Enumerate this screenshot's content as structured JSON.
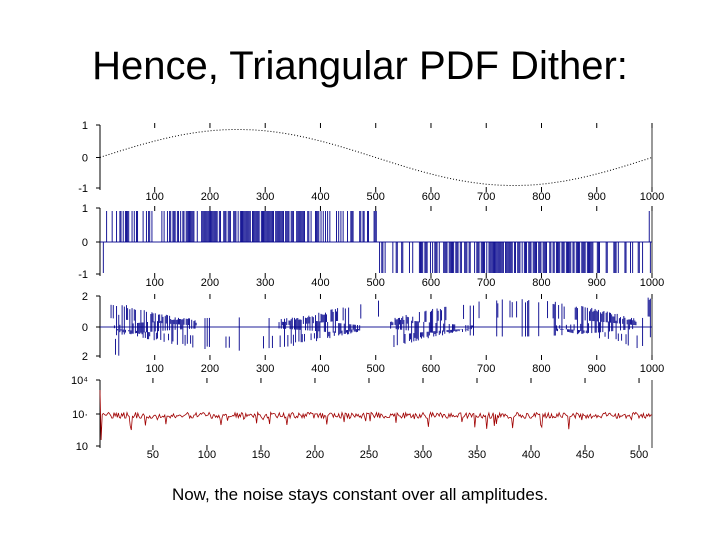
{
  "slide": {
    "title": "Hence, Triangular PDF Dither:",
    "caption": "Now, the noise stays constant over all amplitudes."
  },
  "colors": {
    "signal": "#000000",
    "dither": "#00008b",
    "spectrum": "#a00000",
    "axis": "#000000"
  },
  "chart_data": [
    {
      "type": "line",
      "description_key": "panel1",
      "x_range": [
        1,
        1000
      ],
      "ylim": [
        -1,
        1
      ],
      "y_ticks": [
        "1",
        "0",
        "-1"
      ],
      "x_ticks": [
        "100",
        "200",
        "300",
        "400",
        "500",
        "600",
        "700",
        "800",
        "900",
        "1000"
      ],
      "series": [
        {
          "style": "dotted",
          "function": "sine",
          "amplitude": 0.95,
          "period": 1000
        }
      ]
    },
    {
      "type": "line",
      "description_key": "panel2",
      "x_range": [
        1,
        1000
      ],
      "ylim": [
        -1,
        1
      ],
      "y_ticks": [
        "1",
        "0",
        "-1"
      ],
      "x_ticks": [
        "100",
        "200",
        "300",
        "400",
        "500",
        "600",
        "700",
        "800",
        "900",
        "1000"
      ],
      "series": [
        {
          "style": "dense",
          "function": "quantized-dithered-sine",
          "levels": [
            -1,
            0,
            1
          ]
        }
      ]
    },
    {
      "type": "line",
      "description_key": "panel3",
      "x_range": [
        1,
        1000
      ],
      "ylim": [
        -2,
        2
      ],
      "y_ticks": [
        "2",
        "0",
        "2"
      ],
      "x_ticks": [
        "100",
        "200",
        "300",
        "400",
        "500",
        "600",
        "700",
        "800",
        "900",
        "1000"
      ],
      "series": [
        {
          "style": "dense",
          "function": "quantization-error",
          "levels": [
            -2,
            0,
            2
          ]
        }
      ]
    },
    {
      "type": "line",
      "description_key": "panel4",
      "x_range": [
        1,
        512
      ],
      "yscale": "log",
      "y_ticks": [
        "10⁴",
        "10·",
        "10"
      ],
      "x_ticks": [
        "50",
        "100",
        "150",
        "200",
        "250",
        "300",
        "350",
        "400",
        "450",
        "500"
      ],
      "series": [
        {
          "style": "noisy",
          "function": "flat-noise-spectrum",
          "level": 0.5
        }
      ]
    }
  ]
}
